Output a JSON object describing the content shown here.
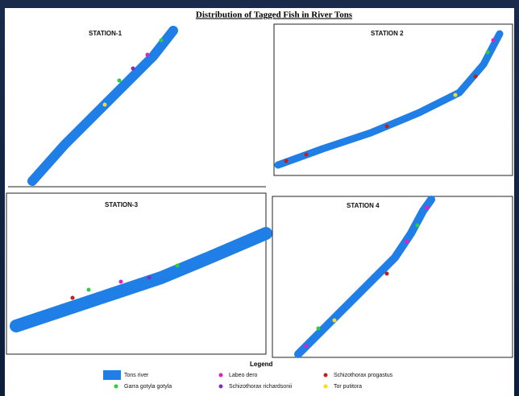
{
  "title": "Distribution of Tagged Fish in River Tons",
  "panels": [
    {
      "label": "STATION-1"
    },
    {
      "label": "STATION 2"
    },
    {
      "label": "STATION-3"
    },
    {
      "label": "STATION 4"
    }
  ],
  "legend": {
    "title": "Legend",
    "items": [
      {
        "label": "Tons river",
        "color": "#1f7fe6"
      },
      {
        "label": "Garra gotyla gotyla",
        "color": "#2ecc40"
      },
      {
        "label": "Labeo dero",
        "color": "#e020c0"
      },
      {
        "label": "Schizothorax richardsonii",
        "color": "#8030c0"
      },
      {
        "label": "Schizothorax progastus",
        "color": "#c0201a"
      },
      {
        "label": "Tor putitora",
        "color": "#f0e020"
      }
    ]
  }
}
